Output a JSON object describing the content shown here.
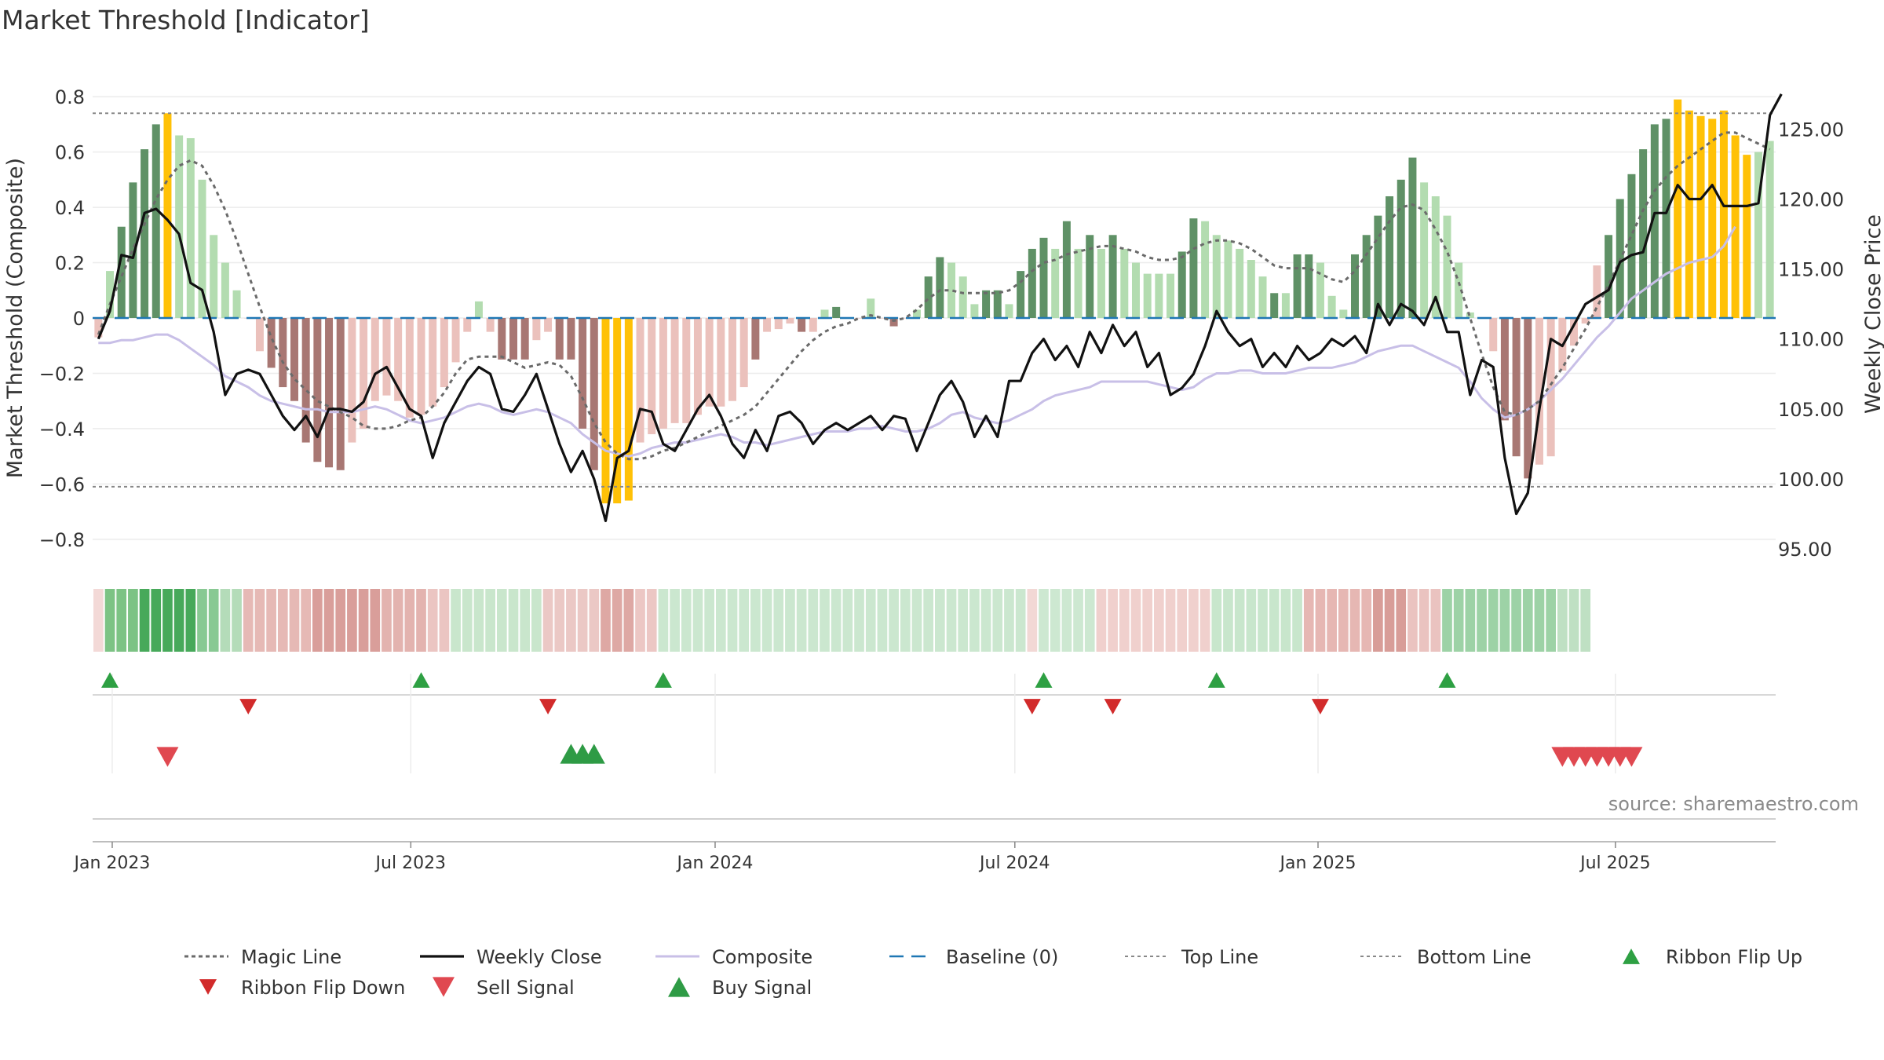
{
  "page": {
    "title": "Market Threshold [Indicator]",
    "source": "source: sharemaestro.com"
  },
  "chart_data": {
    "type": "bar",
    "title": "Market Threshold [Indicator]",
    "ylabel": "Market Threshold (Composite)",
    "y2label": "Weekly Close Price",
    "ylim": [
      -0.86,
      0.86
    ],
    "y2lim": [
      94.5,
      128.5
    ],
    "y_ticks": [
      0.8,
      0.6,
      0.4,
      0.2,
      0,
      -0.2,
      -0.4,
      -0.6,
      -0.8
    ],
    "y_tick_labels": [
      "0.8",
      "0.6",
      "0.4",
      "0.2",
      "0",
      "−0.2",
      "−0.4",
      "−0.6",
      "−0.8"
    ],
    "y2_ticks": [
      125,
      120,
      115,
      110,
      105,
      100,
      95
    ],
    "y2_tick_labels": [
      "125.00",
      "120.00",
      "115.00",
      "110.00",
      "105.00",
      "100.00",
      "95.00"
    ],
    "x_ticks": [
      {
        "week": 1.7,
        "label": "Jan 2023"
      },
      {
        "week": 27.6,
        "label": "Jul 2023"
      },
      {
        "week": 54,
        "label": "Jan 2024"
      },
      {
        "week": 80,
        "label": "Jul 2024"
      },
      {
        "week": 106.3,
        "label": "Jan 2025"
      },
      {
        "week": 132.1,
        "label": "Jul 2025"
      }
    ],
    "top_line": 0.74,
    "bottom_line": -0.61,
    "composite_bars": [
      -0.07,
      0.17,
      0.33,
      0.49,
      0.61,
      0.7,
      0.74,
      0.66,
      0.65,
      0.5,
      0.3,
      0.2,
      0.1,
      0.0,
      -0.12,
      -0.18,
      -0.25,
      -0.3,
      -0.45,
      -0.52,
      -0.54,
      -0.55,
      -0.45,
      -0.4,
      -0.3,
      -0.28,
      -0.3,
      -0.36,
      -0.35,
      -0.32,
      -0.25,
      -0.16,
      -0.05,
      0.06,
      -0.05,
      -0.15,
      -0.15,
      -0.15,
      -0.08,
      -0.05,
      -0.15,
      -0.15,
      -0.4,
      -0.55,
      -0.67,
      -0.67,
      -0.66,
      -0.45,
      -0.42,
      -0.4,
      -0.38,
      -0.38,
      -0.35,
      -0.32,
      -0.32,
      -0.3,
      -0.25,
      -0.15,
      -0.05,
      -0.04,
      -0.02,
      -0.05,
      -0.05,
      0.03,
      0.04,
      0.0,
      0.0,
      0.07,
      0.0,
      -0.03,
      0.0,
      0.03,
      0.15,
      0.22,
      0.2,
      0.15,
      0.05,
      0.1,
      0.1,
      0.05,
      0.17,
      0.25,
      0.29,
      0.25,
      0.35,
      0.25,
      0.3,
      0.25,
      0.3,
      0.25,
      0.2,
      0.16,
      0.16,
      0.16,
      0.24,
      0.36,
      0.35,
      0.3,
      0.28,
      0.25,
      0.21,
      0.15,
      0.09,
      0.09,
      0.23,
      0.23,
      0.2,
      0.08,
      0.03,
      0.23,
      0.3,
      0.37,
      0.44,
      0.5,
      0.58,
      0.49,
      0.44,
      0.37,
      0.2,
      0.02,
      0.0,
      -0.12,
      -0.37,
      -0.5,
      -0.58,
      -0.53,
      -0.5,
      -0.19,
      -0.1,
      -0.02,
      0.19,
      0.3,
      0.43,
      0.52,
      0.61,
      0.7,
      0.72,
      0.79,
      0.75,
      0.73,
      0.72,
      0.75,
      0.66,
      0.59,
      0.6,
      0.64
    ],
    "bar_styles": [
      "lr",
      "lg",
      "dg",
      "dg",
      "dg",
      "dg",
      "gold",
      "lg",
      "lg",
      "lg",
      "lg",
      "lg",
      "lg",
      "lr",
      "lr",
      "dr",
      "dr",
      "dr",
      "dr",
      "dr",
      "dr",
      "dr",
      "lr",
      "lr",
      "lr",
      "lr",
      "lr",
      "lr",
      "lr",
      "lr",
      "lr",
      "lr",
      "lr",
      "lg",
      "lr",
      "dr",
      "dr",
      "dr",
      "lr",
      "lr",
      "dr",
      "dr",
      "dr",
      "dr",
      "gold",
      "gold",
      "gold",
      "lr",
      "lr",
      "lr",
      "lr",
      "lr",
      "lr",
      "lr",
      "lr",
      "lr",
      "lr",
      "dr",
      "lr",
      "lr",
      "lr",
      "dr",
      "lr",
      "lg",
      "dg",
      "lr",
      "lr",
      "lg",
      "lr",
      "dr",
      "lr",
      "lg",
      "dg",
      "dg",
      "lg",
      "lg",
      "lg",
      "dg",
      "dg",
      "lg",
      "dg",
      "dg",
      "dg",
      "lg",
      "dg",
      "lg",
      "dg",
      "lg",
      "dg",
      "lg",
      "lg",
      "lg",
      "lg",
      "lg",
      "dg",
      "dg",
      "lg",
      "lg",
      "lg",
      "lg",
      "lg",
      "lg",
      "dg",
      "lg",
      "dg",
      "dg",
      "lg",
      "lg",
      "lg",
      "dg",
      "dg",
      "dg",
      "dg",
      "dg",
      "dg",
      "lg",
      "lg",
      "lg",
      "lg",
      "lg",
      "lr",
      "lr",
      "dr",
      "dr",
      "dr",
      "lr",
      "lr",
      "lr",
      "lr",
      "lr",
      "lr",
      "dg",
      "dg",
      "dg",
      "dg",
      "dg",
      "dg",
      "gold",
      "gold",
      "gold",
      "gold",
      "gold",
      "gold",
      "gold",
      "lg",
      "lg",
      "lg",
      "dg"
    ],
    "composite_line": [
      -0.09,
      -0.09,
      -0.08,
      -0.08,
      -0.07,
      -0.06,
      -0.06,
      -0.08,
      -0.11,
      -0.14,
      -0.17,
      -0.21,
      -0.23,
      -0.25,
      -0.28,
      -0.3,
      -0.31,
      -0.32,
      -0.33,
      -0.33,
      -0.34,
      -0.34,
      -0.34,
      -0.33,
      -0.32,
      -0.33,
      -0.35,
      -0.37,
      -0.38,
      -0.37,
      -0.36,
      -0.34,
      -0.32,
      -0.31,
      -0.32,
      -0.34,
      -0.35,
      -0.34,
      -0.33,
      -0.34,
      -0.36,
      -0.38,
      -0.42,
      -0.45,
      -0.48,
      -0.49,
      -0.5,
      -0.49,
      -0.47,
      -0.46,
      -0.45,
      -0.45,
      -0.44,
      -0.43,
      -0.42,
      -0.43,
      -0.45,
      -0.45,
      -0.46,
      -0.45,
      -0.44,
      -0.43,
      -0.42,
      -0.41,
      -0.41,
      -0.41,
      -0.4,
      -0.4,
      -0.39,
      -0.4,
      -0.41,
      -0.41,
      -0.4,
      -0.38,
      -0.35,
      -0.34,
      -0.36,
      -0.37,
      -0.38,
      -0.37,
      -0.35,
      -0.33,
      -0.3,
      -0.28,
      -0.27,
      -0.26,
      -0.25,
      -0.23,
      -0.23,
      -0.23,
      -0.23,
      -0.23,
      -0.24,
      -0.25,
      -0.26,
      -0.25,
      -0.22,
      -0.2,
      -0.2,
      -0.19,
      -0.19,
      -0.2,
      -0.2,
      -0.2,
      -0.19,
      -0.18,
      -0.18,
      -0.18,
      -0.17,
      -0.16,
      -0.14,
      -0.12,
      -0.11,
      -0.1,
      -0.1,
      -0.12,
      -0.14,
      -0.16,
      -0.18,
      -0.23,
      -0.29,
      -0.33,
      -0.36,
      -0.35,
      -0.33,
      -0.3,
      -0.26,
      -0.22,
      -0.17,
      -0.12,
      -0.07,
      -0.03,
      0.02,
      0.07,
      0.1,
      0.13,
      0.16,
      0.18,
      0.2,
      0.21,
      0.22,
      0.26,
      0.33
    ],
    "magic_line": [
      -0.06,
      0.05,
      0.15,
      0.25,
      0.34,
      0.43,
      0.5,
      0.55,
      0.57,
      0.55,
      0.48,
      0.39,
      0.28,
      0.16,
      0.04,
      -0.07,
      -0.16,
      -0.22,
      -0.26,
      -0.3,
      -0.32,
      -0.34,
      -0.36,
      -0.39,
      -0.4,
      -0.4,
      -0.39,
      -0.37,
      -0.36,
      -0.32,
      -0.27,
      -0.2,
      -0.15,
      -0.14,
      -0.14,
      -0.14,
      -0.16,
      -0.18,
      -0.17,
      -0.16,
      -0.17,
      -0.21,
      -0.29,
      -0.38,
      -0.45,
      -0.49,
      -0.51,
      -0.51,
      -0.5,
      -0.48,
      -0.47,
      -0.45,
      -0.43,
      -0.41,
      -0.39,
      -0.37,
      -0.35,
      -0.32,
      -0.27,
      -0.22,
      -0.17,
      -0.12,
      -0.08,
      -0.05,
      -0.03,
      -0.02,
      0.0,
      0.01,
      0.0,
      -0.01,
      0.0,
      0.03,
      0.07,
      0.1,
      0.1,
      0.09,
      0.09,
      0.09,
      0.09,
      0.1,
      0.13,
      0.17,
      0.2,
      0.21,
      0.23,
      0.24,
      0.25,
      0.26,
      0.26,
      0.25,
      0.24,
      0.22,
      0.21,
      0.21,
      0.22,
      0.25,
      0.27,
      0.28,
      0.28,
      0.27,
      0.25,
      0.22,
      0.19,
      0.18,
      0.18,
      0.18,
      0.16,
      0.14,
      0.13,
      0.17,
      0.23,
      0.29,
      0.35,
      0.4,
      0.41,
      0.39,
      0.32,
      0.24,
      0.13,
      0.0,
      -0.13,
      -0.25,
      -0.34,
      -0.35,
      -0.33,
      -0.3,
      -0.24,
      -0.18,
      -0.11,
      -0.04,
      0.04,
      0.12,
      0.21,
      0.3,
      0.39,
      0.46,
      0.51,
      0.55,
      0.58,
      0.61,
      0.64,
      0.67,
      0.67,
      0.65,
      0.63,
      0.61
    ],
    "weekly_close": [
      110.0,
      112.0,
      116.0,
      115.8,
      119.0,
      119.3,
      118.5,
      117.5,
      114.0,
      113.5,
      110.5,
      106.0,
      107.5,
      107.8,
      107.5,
      106.0,
      104.5,
      103.5,
      104.5,
      103.0,
      105.0,
      105.0,
      104.8,
      105.5,
      107.5,
      108.0,
      106.5,
      105.0,
      104.5,
      101.5,
      104.0,
      105.5,
      107.0,
      108.0,
      107.5,
      105.0,
      104.8,
      106.0,
      107.5,
      105.0,
      102.5,
      100.5,
      102.0,
      100.0,
      97.0,
      101.5,
      102.0,
      105.0,
      104.8,
      102.5,
      102.0,
      103.5,
      105.0,
      106.0,
      104.5,
      102.5,
      101.5,
      103.5,
      102.0,
      104.5,
      104.8,
      104.0,
      102.5,
      103.5,
      104.0,
      103.5,
      104.0,
      104.5,
      103.5,
      104.5,
      104.3,
      102.0,
      104.0,
      106.0,
      107.0,
      105.5,
      103.0,
      104.5,
      103.0,
      107.0,
      107.0,
      109.0,
      110.0,
      108.5,
      109.5,
      108.0,
      110.5,
      109.0,
      111.0,
      109.5,
      110.5,
      108.0,
      109.0,
      106.0,
      106.5,
      107.5,
      109.5,
      112.0,
      110.5,
      109.5,
      110.0,
      108.0,
      109.0,
      108.0,
      109.5,
      108.5,
      109.0,
      110.0,
      109.5,
      110.2,
      109.0,
      112.5,
      111.0,
      112.5,
      112.0,
      111.0,
      113.0,
      110.5,
      110.5,
      106.0,
      108.5,
      108.0,
      101.5,
      97.5,
      99.0,
      105.0,
      110.0,
      109.5,
      111.0,
      112.5,
      113.0,
      113.5,
      115.5,
      116.0,
      116.2,
      119.0,
      119.0,
      121.0,
      120.0,
      120.0,
      121.0,
      119.5,
      119.5,
      119.5,
      119.7,
      126.0,
      127.5
    ],
    "ribbon": [
      {
        "from": 0,
        "to": 1,
        "color": "#f3d9d7"
      },
      {
        "from": 1,
        "to": 4,
        "color": "#7cc384"
      },
      {
        "from": 4,
        "to": 9,
        "color": "#47a95a"
      },
      {
        "from": 9,
        "to": 11,
        "color": "#88c993"
      },
      {
        "from": 11,
        "to": 13,
        "color": "#b4dcb9"
      },
      {
        "from": 13,
        "to": 19,
        "color": "#e6b9b5"
      },
      {
        "from": 19,
        "to": 25,
        "color": "#d99e9a"
      },
      {
        "from": 25,
        "to": 29,
        "color": "#e3b3af"
      },
      {
        "from": 29,
        "to": 31,
        "color": "#ebc5c2"
      },
      {
        "from": 31,
        "to": 39,
        "color": "#c9e6cc"
      },
      {
        "from": 39,
        "to": 44,
        "color": "#ebc8c5"
      },
      {
        "from": 44,
        "to": 47,
        "color": "#dea8a4"
      },
      {
        "from": 47,
        "to": 49,
        "color": "#ecc7c4"
      },
      {
        "from": 49,
        "to": 81,
        "color": "#cbe7cf"
      },
      {
        "from": 81,
        "to": 82,
        "color": "#f2d8d5"
      },
      {
        "from": 82,
        "to": 87,
        "color": "#cde8d1"
      },
      {
        "from": 87,
        "to": 97,
        "color": "#f0d0cd"
      },
      {
        "from": 97,
        "to": 105,
        "color": "#c8e6cc"
      },
      {
        "from": 105,
        "to": 111,
        "color": "#e6b7b3"
      },
      {
        "from": 111,
        "to": 114,
        "color": "#d89d98"
      },
      {
        "from": 114,
        "to": 117,
        "color": "#eac3c0"
      },
      {
        "from": 117,
        "to": 127,
        "color": "#9dd2a6"
      },
      {
        "from": 127,
        "to": 130,
        "color": "#bfe0c3"
      }
    ],
    "ribbon_flip_up": [
      1,
      28,
      49,
      82,
      97,
      117
    ],
    "ribbon_flip_down": [
      13,
      39,
      81,
      88,
      106
    ],
    "sell_signals": [
      6,
      127,
      128,
      129,
      130,
      131,
      132,
      133
    ],
    "buy_signals": [
      41,
      42,
      43
    ],
    "legend": [
      "Magic Line",
      "Weekly Close",
      "Composite",
      "Baseline (0)",
      "Top Line",
      "Bottom Line",
      "Ribbon Flip Up",
      "Ribbon Flip Down",
      "Sell Signal",
      "Buy Signal"
    ],
    "colors": {
      "dark_green": "#5f9166",
      "light_green": "#b3dcb0",
      "dark_red": "#a87773",
      "light_red": "#ebc1bc",
      "gold": "#ffc107",
      "close": "#111111",
      "composite": "#c8bfe7",
      "magic": "#6a6a6a",
      "baseline": "#1f77b4",
      "threshold": "#888888",
      "flip_up": "#2ea043",
      "flip_down": "#d22b2b",
      "sell": "#e04850",
      "buy": "#2e9b45"
    }
  }
}
